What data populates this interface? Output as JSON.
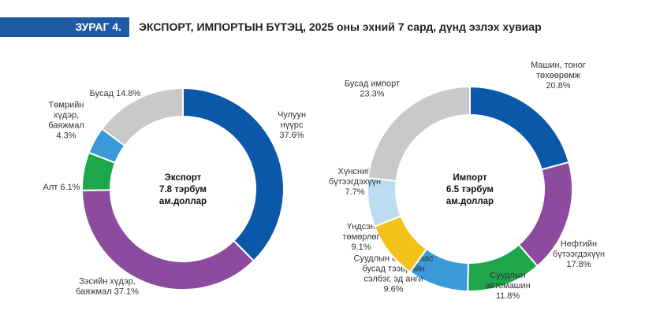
{
  "figure": {
    "label": "ЗУРАГ 4.",
    "title": "ЭКСПОРТ, ИМПОРТЫН БҮТЭЦ, 2025 оны эхний 7 сард, дүнд эзлэх хувиар"
  },
  "chart_data": [
    {
      "type": "pie",
      "center_lines": [
        "Экспорт",
        "7.8 тэрбум",
        "ам.доллар"
      ],
      "slices": [
        {
          "name": "Чулуун нүүрс",
          "value": 37.6,
          "color": "#0b57a8",
          "label_lines": [
            "Чулуун",
            "нүүрс",
            "37.6%"
          ]
        },
        {
          "name": "Зэсийн хүдэр, баяжмал",
          "value": 37.1,
          "color": "#8c4b9e",
          "label_lines": [
            "Зэсийн хүдэр,",
            "баяжмал 37.1%"
          ]
        },
        {
          "name": "Алт",
          "value": 6.1,
          "color": "#1ea64b",
          "label_lines": [
            "Алт 6.1%"
          ]
        },
        {
          "name": "Төмрийн хүдэр, баяжмал",
          "value": 4.3,
          "color": "#3a9ad9",
          "label_lines": [
            "Төмрийн",
            "хүдэр,",
            "баяжмал",
            "4.3%"
          ]
        },
        {
          "name": "Бусад",
          "value": 14.8,
          "color": "#c9c9c9",
          "label_lines": [
            "Бусад 14.8%"
          ]
        }
      ]
    },
    {
      "type": "pie",
      "center_lines": [
        "Импорт",
        "6.5 тэрбум",
        "ам.доллар"
      ],
      "slices": [
        {
          "name": "Машин, тоног төхөөрөмж",
          "value": 20.8,
          "color": "#0b57a8",
          "label_lines": [
            "Машин, тоног",
            "төхөөрөмж",
            "20.8%"
          ]
        },
        {
          "name": "Нефтийн бүтээгдэхүүн",
          "value": 17.8,
          "color": "#8c4b9e",
          "label_lines": [
            "Нефтийн",
            "бүтээгдэхүүн",
            "17.8%"
          ]
        },
        {
          "name": "Суудлын автомашин",
          "value": 11.8,
          "color": "#1ea64b",
          "label_lines": [
            "Суудлын",
            "автомашин",
            "11.8%"
          ]
        },
        {
          "name": "Суудлын машинаас бусад тээврийн сэлбэг, эд анги",
          "value": 9.6,
          "color": "#3a9ad9",
          "label_lines": [
            "Суудлын машинаас",
            "бусад тээврийн",
            "сэлбэг, эд анги",
            "9.6%"
          ]
        },
        {
          "name": "Үндсэн төмөрлөг",
          "value": 9.1,
          "color": "#f2c11c",
          "label_lines": [
            "Үндсэн",
            "төмөрлөг",
            "9.1%"
          ]
        },
        {
          "name": "Хүнсний бүтээгдэхүүн",
          "value": 7.7,
          "color": "#bcdcf0",
          "label_lines": [
            "Хүнсний",
            "бүтээгдэхүүн",
            "7.7%"
          ]
        },
        {
          "name": "Бусад импорт",
          "value": 23.3,
          "color": "#c9c9c9",
          "label_lines": [
            "Бусад импорт",
            "23.3%"
          ]
        }
      ]
    }
  ]
}
